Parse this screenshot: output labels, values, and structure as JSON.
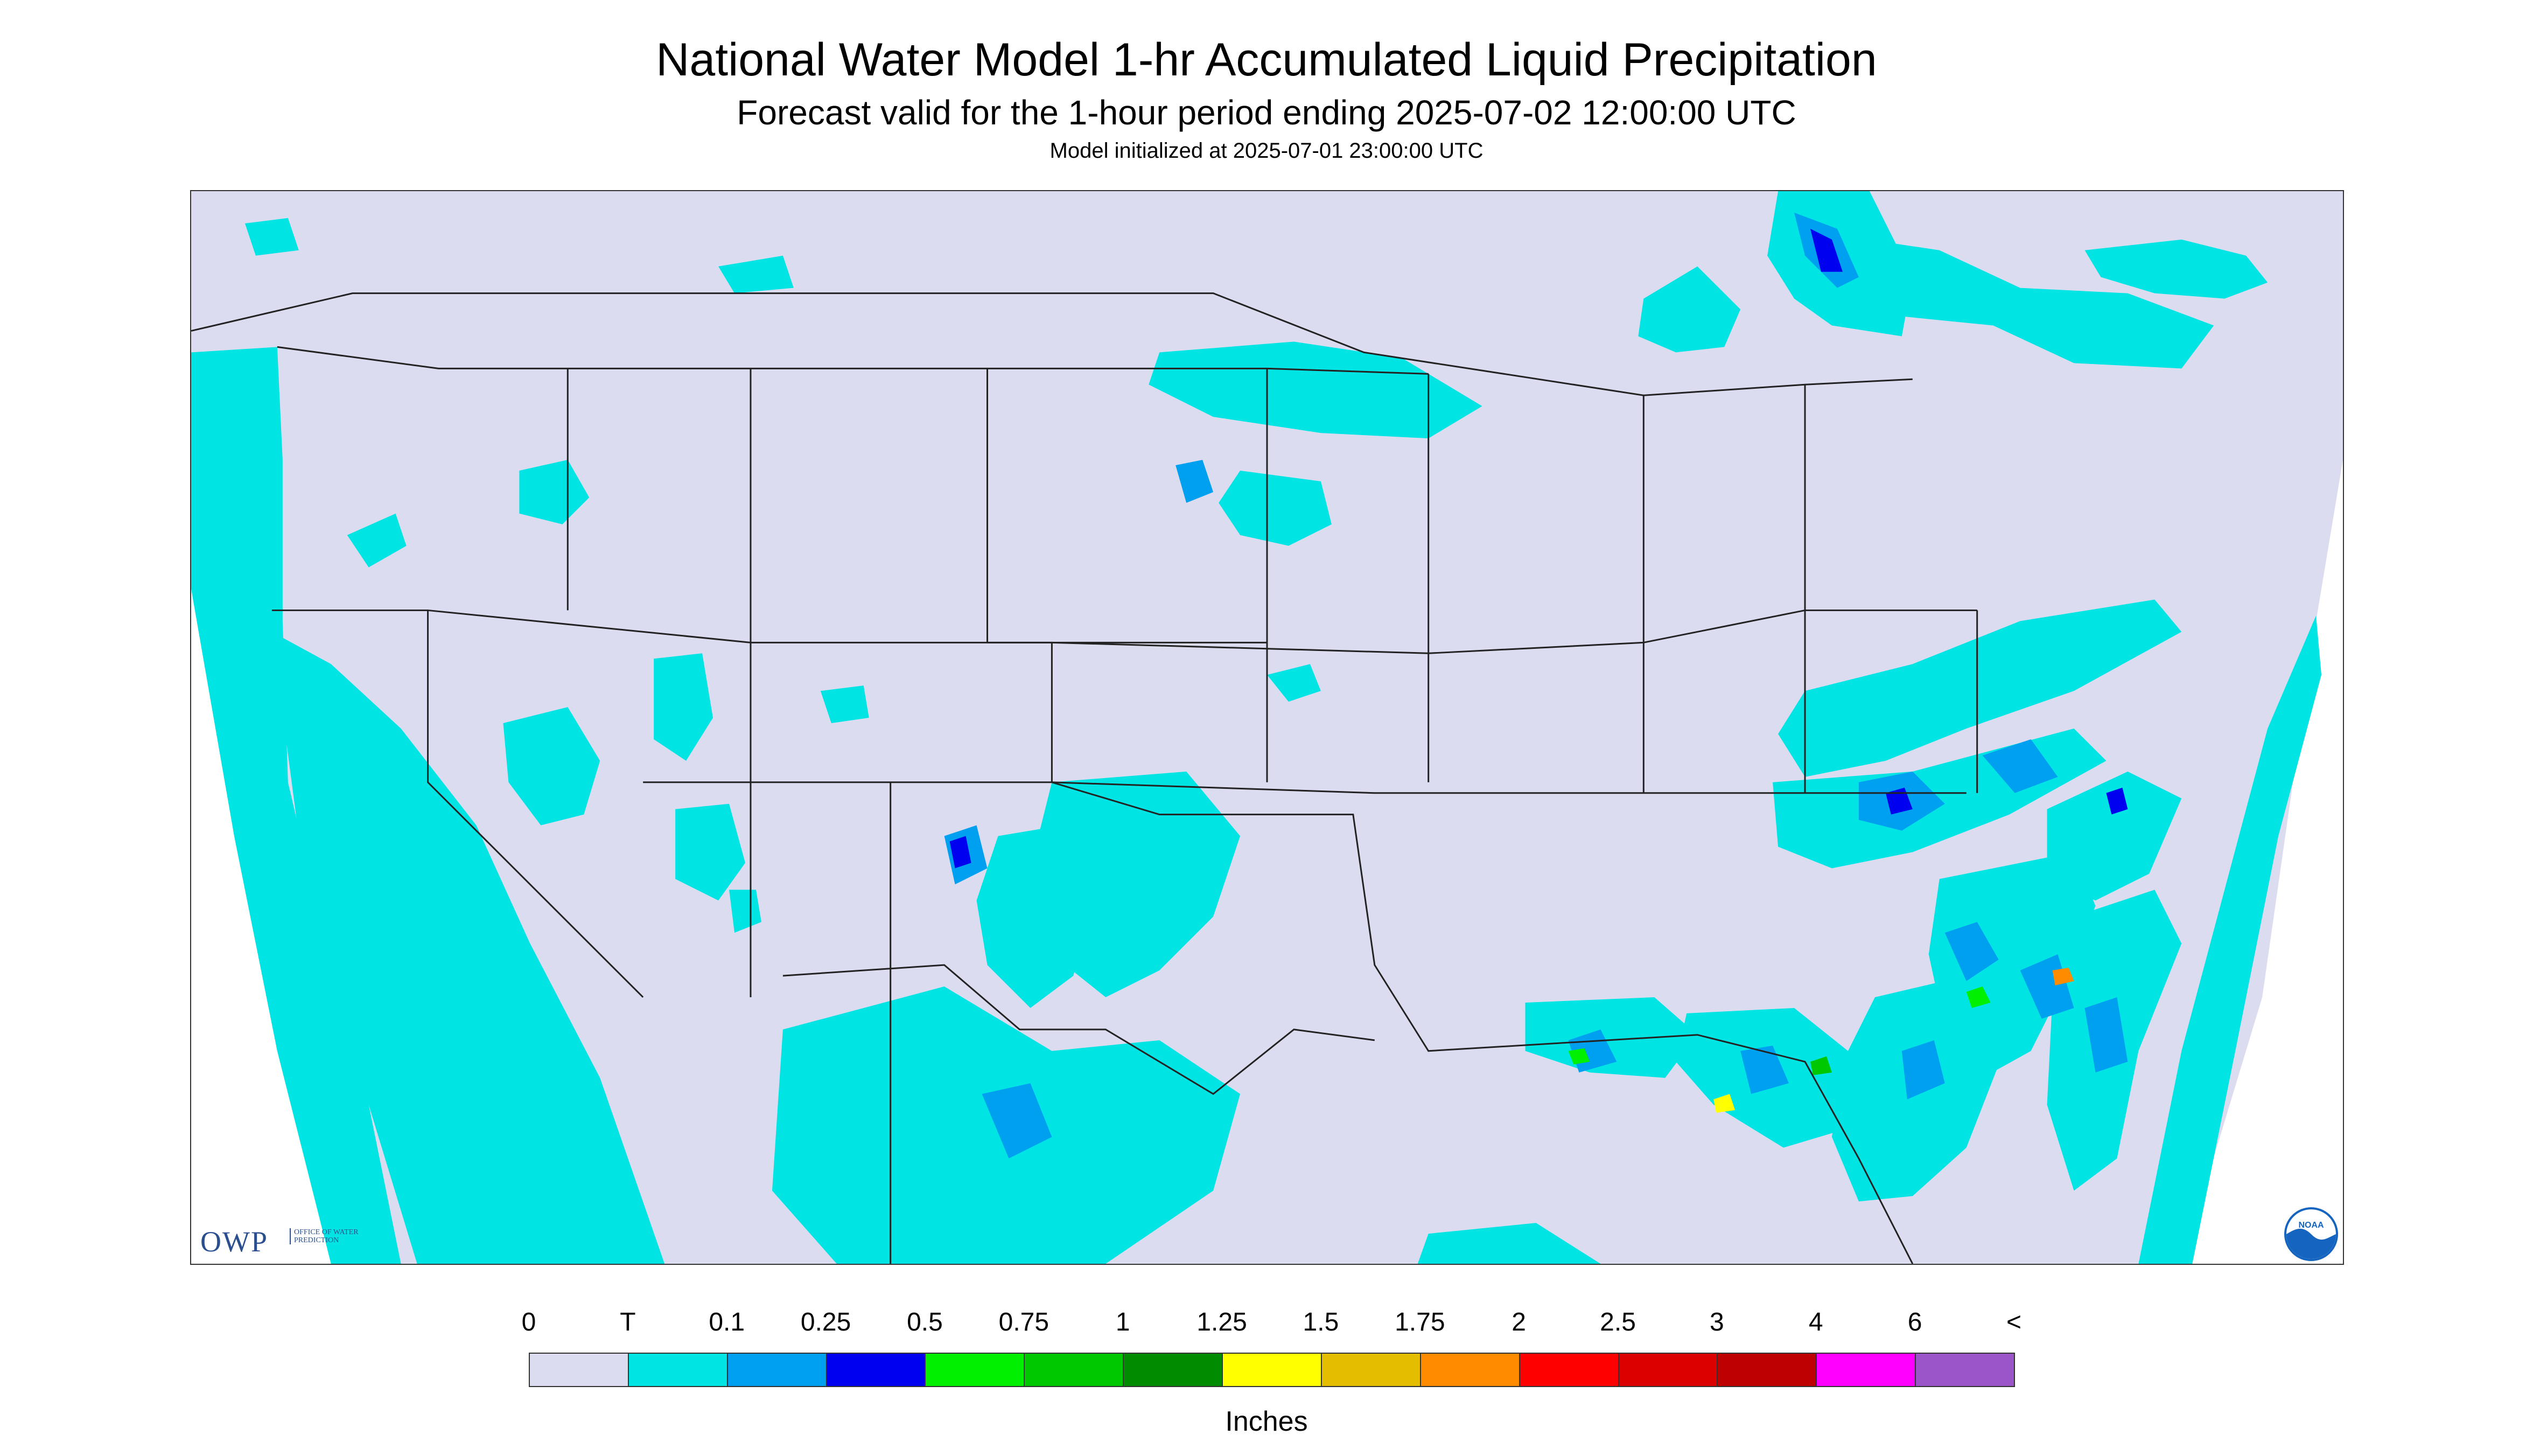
{
  "title": "National Water Model 1-hr Accumulated Liquid Precipitation",
  "subtitle": "Forecast valid for the 1-hour period ending 2025-07-02 12:00:00 UTC",
  "init_line": "Model initialized at 2025-07-01 23:00:00 UTC",
  "logos": {
    "owp_mark": "OWP",
    "owp_text": "OFFICE OF WATER PREDICTION",
    "noaa_text": "NOAA"
  },
  "legend": {
    "units": "Inches",
    "labels": [
      "0",
      "T",
      "0.1",
      "0.25",
      "0.5",
      "0.75",
      "1",
      "1.25",
      "1.5",
      "1.75",
      "2",
      "2.5",
      "3",
      "4",
      "6",
      "<"
    ],
    "colors": [
      "#dcdcf0",
      "#00e4e4",
      "#00a0f0",
      "#0000f0",
      "#00f000",
      "#00c800",
      "#008c00",
      "#ffff00",
      "#e4bc00",
      "#ff8c00",
      "#ff0000",
      "#dc0000",
      "#be0000",
      "#ff00ff",
      "#9b55c8"
    ]
  },
  "colors": {
    "no_precip": "#dcdcf0",
    "outside_domain": "#ffffff",
    "boundary_lines": "#222222"
  }
}
